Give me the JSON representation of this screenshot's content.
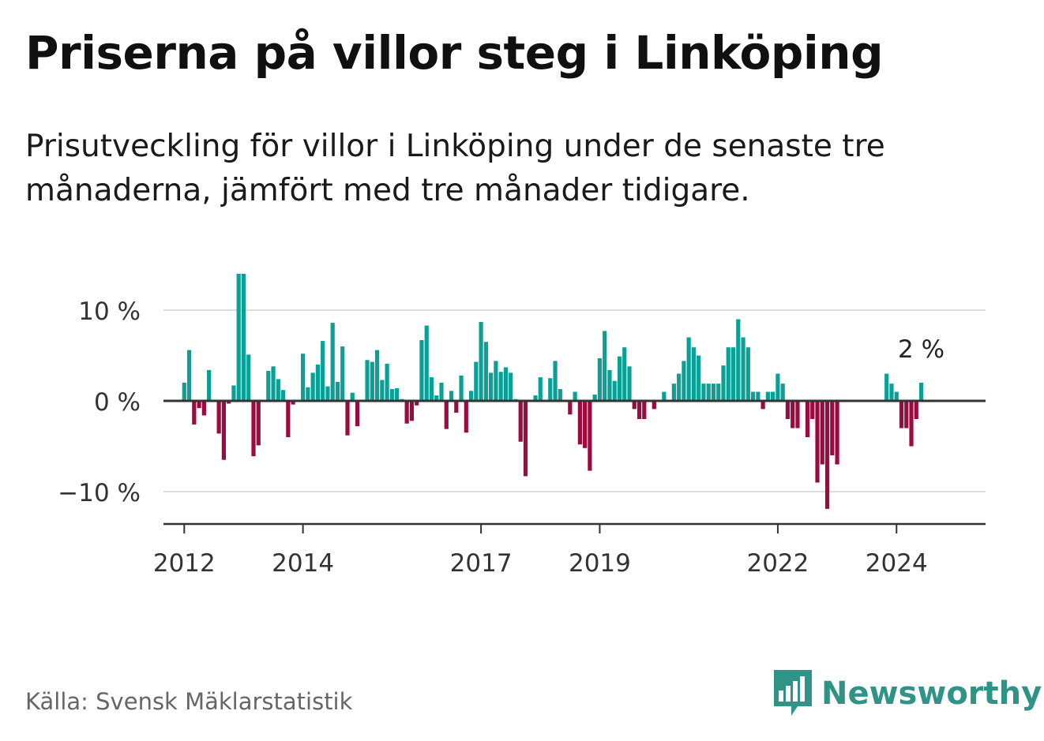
{
  "title": "Priserna på villor steg i Linköping",
  "subtitle": "Prisutveckling för villor i Linköping under de senaste tre månaderna, jämfört med tre månader tidigare.",
  "source": "Källa: Svensk Mäklarstatistik",
  "brand": "Newsworthy",
  "colors": {
    "positive": "#0aa096",
    "negative": "#9b0b3f",
    "grid": "#dcdcdc",
    "axis": "#333333",
    "brand": "#2f9388"
  },
  "chart_data": {
    "type": "bar",
    "title": "Priserna på villor steg i Linköping",
    "ylabel": "",
    "xlabel": "",
    "ylim": [
      -13.5,
      12
    ],
    "yticks": [
      {
        "value": 10,
        "label": "10 %"
      },
      {
        "value": 0,
        "label": "0 %"
      },
      {
        "value": -10,
        "label": "−10 %"
      }
    ],
    "xrange": [
      2011.65,
      2025.5
    ],
    "xticks": [
      {
        "value": 2012,
        "label": "2012"
      },
      {
        "value": 2014,
        "label": "2014"
      },
      {
        "value": 2017,
        "label": "2017"
      },
      {
        "value": 2019,
        "label": "2019"
      },
      {
        "value": 2022,
        "label": "2022"
      },
      {
        "value": 2024,
        "label": "2024"
      }
    ],
    "start": 2012.0,
    "step": 0.08333,
    "values": [
      2,
      5.6,
      -2.6,
      -0.8,
      -1.6,
      3.4,
      0,
      -3.6,
      -6.5,
      -0.3,
      1.7,
      14,
      14,
      5.1,
      -6.1,
      -4.9,
      0,
      3.3,
      3.8,
      2.4,
      1.2,
      -4,
      -0.4,
      0,
      5.2,
      1.5,
      3.1,
      4,
      6.6,
      1.6,
      8.6,
      2.1,
      6,
      -3.8,
      0.9,
      -2.8,
      0,
      4.5,
      4.3,
      5.6,
      2.3,
      4.1,
      1.3,
      1.4,
      0.2,
      -2.5,
      -2.2,
      -0.5,
      6.7,
      8.3,
      2.6,
      0.6,
      2,
      -3.1,
      1.1,
      -1.3,
      2.8,
      -3.5,
      1.1,
      4.3,
      8.7,
      6.5,
      3.1,
      4.4,
      3.2,
      3.7,
      3.1,
      0.2,
      -4.5,
      -8.3,
      0,
      0.6,
      2.6,
      0,
      2.5,
      4.4,
      1.3,
      0,
      -1.5,
      1,
      -4.8,
      -5.2,
      -7.7,
      0.7,
      4.7,
      7.7,
      3.4,
      2.2,
      4.9,
      5.9,
      3.8,
      -0.9,
      -2,
      -2,
      0,
      -0.9,
      0.1,
      1,
      0,
      1.9,
      3,
      4.4,
      7,
      5.9,
      5,
      1.9,
      1.9,
      1.9,
      1.9,
      3.9,
      5.9,
      5.9,
      9,
      7,
      5.9,
      1,
      1,
      -0.9,
      1,
      1,
      3,
      1.9,
      -2,
      -3,
      -3,
      0,
      -4,
      -2,
      -9,
      -7,
      -11.9,
      -6,
      -7,
      0,
      0,
      0,
      0,
      0,
      0,
      0,
      0,
      0,
      3,
      1.9,
      1,
      -3,
      -3,
      -5,
      -2,
      2
    ],
    "annotation": {
      "label": "2 %",
      "value": 2
    }
  }
}
